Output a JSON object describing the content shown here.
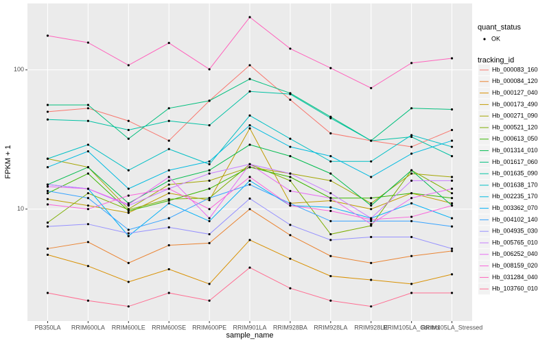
{
  "chart_data": {
    "type": "line",
    "x_label": "sample_name",
    "y_label": "FPKM + 1",
    "log_y": true,
    "grid": true,
    "legend_title": "tracking_id",
    "status_legend": {
      "title": "quant_status",
      "labels": [
        "OK"
      ]
    },
    "ylim": [
      1.57,
      300
    ],
    "yticks": [
      10,
      100
    ],
    "categories": [
      "PB350LA",
      "RRIM600LA",
      "RRIM600LE",
      "RRIM600SE",
      "RRIM600PE",
      "RRIM901LA",
      "RRIM928BA",
      "RRIM928LA",
      "RRIM928LE",
      "RRIM105LA_Control",
      "RRIM105LA_Stressed"
    ],
    "series": [
      {
        "name": "Hb_000083_160",
        "color": "#F8766D",
        "values": [
          50,
          53,
          43,
          31,
          60,
          108,
          61,
          35,
          31,
          28,
          37
        ]
      },
      {
        "name": "Hb_000084_120",
        "color": "#EA8331",
        "values": [
          5.2,
          5.8,
          4.1,
          5.5,
          5.7,
          10,
          6.5,
          4.6,
          4.1,
          4.6,
          5.0
        ]
      },
      {
        "name": "Hb_000127_040",
        "color": "#D89000",
        "values": [
          4.7,
          3.9,
          3.0,
          3.7,
          2.9,
          6.0,
          4.4,
          3.3,
          3.1,
          2.9,
          3.4
        ]
      },
      {
        "name": "Hb_000173_490",
        "color": "#C09B00",
        "values": [
          11.8,
          10.6,
          9.4,
          13,
          11.6,
          38,
          11,
          11.5,
          10,
          13,
          11
        ]
      },
      {
        "name": "Hb_000271_090",
        "color": "#A3A500",
        "values": [
          23,
          20,
          10,
          15,
          16,
          20,
          18,
          16,
          11,
          18,
          17
        ]
      },
      {
        "name": "Hb_000521_120",
        "color": "#7CAE00",
        "values": [
          8,
          13,
          9.9,
          11.8,
          12,
          21,
          16,
          6.6,
          7.6,
          19,
          13
        ]
      },
      {
        "name": "Hb_000613_050",
        "color": "#39B600",
        "values": [
          13,
          18,
          9.7,
          11.5,
          14,
          20,
          17,
          12,
          12,
          13,
          12
        ]
      },
      {
        "name": "Hb_001314_010",
        "color": "#00BB4E",
        "values": [
          15,
          20,
          11,
          16,
          19,
          29,
          24,
          18,
          10.6,
          19,
          10.6
        ]
      },
      {
        "name": "Hb_001617_060",
        "color": "#00BF7D",
        "values": [
          56,
          56,
          32,
          53,
          60,
          86,
          68,
          46,
          31,
          53,
          52
        ]
      },
      {
        "name": "Hb_001635_090",
        "color": "#00C1A3",
        "values": [
          44,
          43,
          37,
          43,
          40,
          70,
          67,
          45,
          31,
          33,
          24
        ]
      },
      {
        "name": "Hb_001638_170",
        "color": "#00BFC4",
        "values": [
          23,
          29,
          19,
          27,
          21,
          47,
          32,
          22,
          22,
          34,
          28
        ]
      },
      {
        "name": "Hb_002235_170",
        "color": "#00BAE0",
        "values": [
          20,
          26,
          14,
          19,
          22,
          40,
          28,
          24,
          17,
          25,
          31
        ]
      },
      {
        "name": "Hb_003362_070",
        "color": "#00B0F6",
        "values": [
          15,
          14,
          6.4,
          11,
          8.2,
          16,
          10.6,
          10.3,
          8.6,
          11,
          8.6
        ]
      },
      {
        "name": "Hb_004102_140",
        "color": "#35A2FF",
        "values": [
          13.5,
          12,
          7.1,
          8.6,
          12,
          15,
          11,
          8.2,
          8.2,
          8.2,
          7.5
        ]
      },
      {
        "name": "Hb_004935_030",
        "color": "#9590FF",
        "values": [
          7.5,
          7.8,
          6.7,
          7.4,
          6.6,
          11.9,
          7.7,
          6.0,
          6.3,
          6.3,
          5.2
        ]
      },
      {
        "name": "Hb_005765_010",
        "color": "#C77CFF",
        "values": [
          15,
          14,
          10.6,
          14,
          18,
          21,
          18,
          13,
          8.6,
          16,
          16
        ]
      },
      {
        "name": "Hb_006252_040",
        "color": "#E76BF3",
        "values": [
          14.5,
          14,
          10.8,
          17,
          8.6,
          21,
          13.5,
          12,
          7.8,
          12,
          14
        ]
      },
      {
        "name": "Hb_008159_020",
        "color": "#FA62DB",
        "values": [
          10.8,
          10,
          12.5,
          14,
          10,
          17,
          10.6,
          9.7,
          8.4,
          8.8,
          10.6
        ]
      },
      {
        "name": "Hb_031284_040",
        "color": "#FF62BC",
        "values": [
          176,
          157,
          108,
          156,
          101,
          239,
          142,
          103,
          74,
          112,
          121
        ]
      },
      {
        "name": "Hb_103760_010",
        "color": "#FF6C91",
        "values": [
          2.5,
          2.2,
          2.0,
          2.5,
          2.2,
          3.8,
          2.7,
          2.2,
          2.0,
          2.5,
          2.5
        ]
      }
    ]
  }
}
